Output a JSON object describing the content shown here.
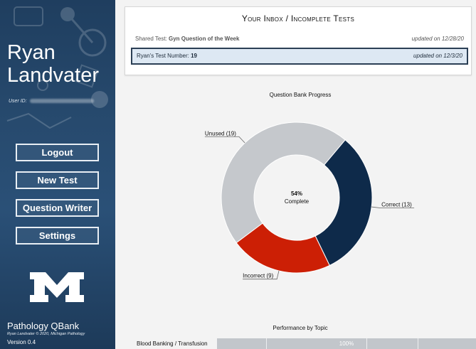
{
  "sidebar": {
    "user_name": "Ryan Landvater",
    "user_id_label": "User ID:",
    "buttons": {
      "logout": "Logout",
      "new_test": "New Test",
      "question_writer": "Question Writer",
      "settings": "Settings"
    },
    "app_name": "Pathology QBank",
    "copyright": "Ryan Landvater © 2020, Michigan Pathology",
    "version": "Version 0.4",
    "logo_icon": "michigan-block-m-icon"
  },
  "inbox": {
    "title": "Your Inbox / Incomplete Tests",
    "shared": {
      "prefix": "Shared Test: ",
      "name": "Gyn Question of the Week",
      "date": "updated on 12/28/20"
    },
    "active": {
      "prefix": "Ryan's Test Number: ",
      "number": "19",
      "date": "updated on 12/3/20"
    }
  },
  "progress_chart_title": "Question Bank Progress",
  "chart_data": [
    {
      "type": "pie",
      "title": "Question Bank Progress",
      "categories": [
        "Correct",
        "Incorrect",
        "Unused"
      ],
      "values": [
        13,
        9,
        19
      ],
      "labels": [
        "Correct (13)",
        "Incorrect (9)",
        "Unused (19)"
      ],
      "colors": [
        "#0e2a4a",
        "#cc1f05",
        "#c5c8cc"
      ],
      "center_value": "54%",
      "center_label": "Complete"
    },
    {
      "type": "bar",
      "title": "Performance by Topic",
      "categories": [
        "Blood Banking / Transfusion"
      ],
      "values": [
        100
      ],
      "value_labels": [
        "100%"
      ]
    }
  ],
  "performance_title": "Performance by Topic"
}
